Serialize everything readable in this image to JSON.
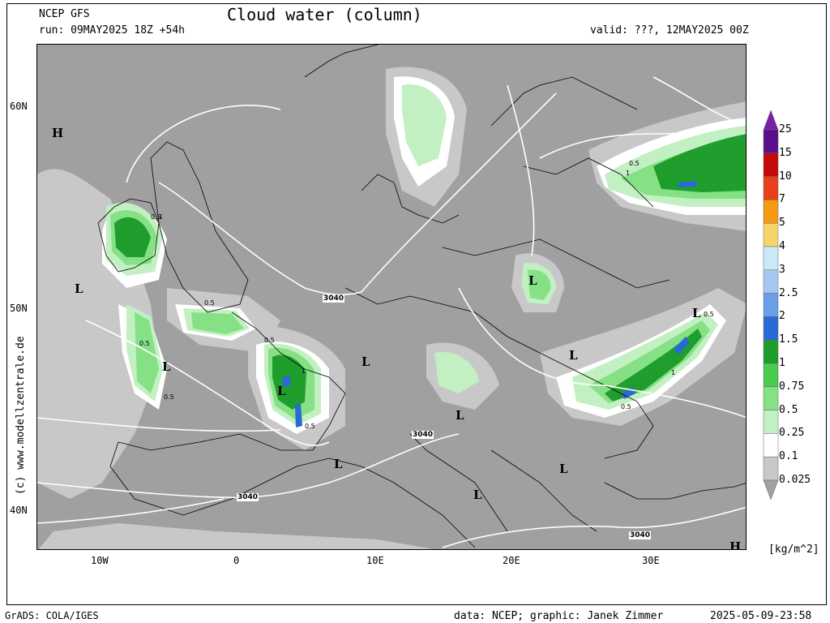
{
  "header": {
    "model": "NCEP GFS",
    "run": "run: 09MAY2025 18Z +54h",
    "title": "Cloud water (column)",
    "valid": "valid: ???, 12MAY2025 00Z"
  },
  "axes": {
    "lat_labels": [
      "60N",
      "50N",
      "40N"
    ],
    "lon_labels": [
      "10W",
      "0",
      "10E",
      "20E",
      "30E"
    ]
  },
  "colorbar": {
    "levels": [
      "25",
      "15",
      "10",
      "7",
      "5",
      "4",
      "3",
      "2.5",
      "2",
      "1.5",
      "1",
      "0.75",
      "0.5",
      "0.25",
      "0.1",
      "0.025"
    ],
    "colors": [
      "#7a1fa8",
      "#5a0f8c",
      "#c40a0a",
      "#e8401a",
      "#f59a12",
      "#f5d56a",
      "#c8e9f5",
      "#a6c8f0",
      "#6b9ee8",
      "#2a6ad6",
      "#1f9e2e",
      "#4cca4c",
      "#86e086",
      "#c2f0c2",
      "#ffffff",
      "#c8c8c8",
      "#a0a0a0"
    ],
    "unit": "[kg/m^2]"
  },
  "map": {
    "pressure_labels": [
      "3040",
      "3040",
      "3040",
      "3040"
    ],
    "highs": [
      "H",
      "H"
    ],
    "lows": [
      "L",
      "L",
      "L",
      "L",
      "L",
      "L",
      "L",
      "L",
      "L",
      "L",
      "L"
    ],
    "value_labels": [
      "0.5",
      "0.5",
      "0.5",
      "0.5",
      "0.5",
      "0.5",
      "0.5",
      "0.5",
      "0.5",
      "1",
      "1",
      "1",
      "1"
    ]
  },
  "copyright": "(c) www.modellzentrale.de",
  "footer": {
    "left": "GrADS: COLA/IGES",
    "center": "data: NCEP; graphic: Janek Zimmer",
    "right": "2025-05-09-23:58"
  }
}
